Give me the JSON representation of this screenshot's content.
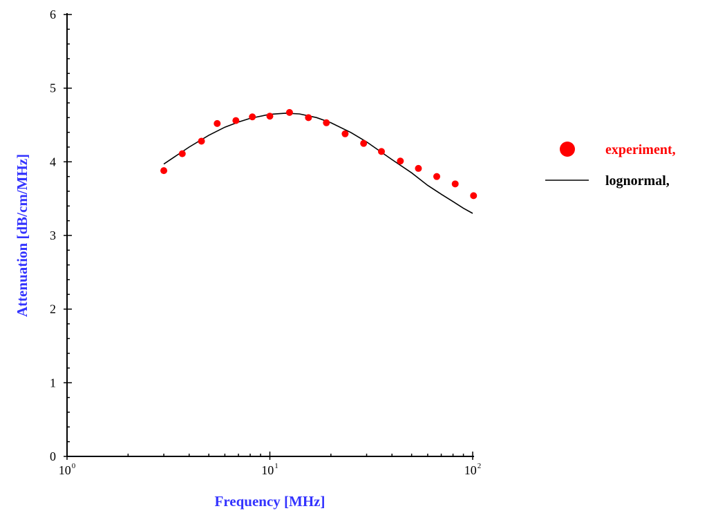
{
  "chart_data": {
    "type": "scatter",
    "title": "",
    "xlabel": "Frequency [MHz]",
    "ylabel": "Attenuation [dB/cm/MHz]",
    "xscale": "log",
    "xlim": [
      1,
      100
    ],
    "ylim": [
      0,
      6
    ],
    "x_ticks": [
      {
        "value": 1,
        "base": "10",
        "exp": "0"
      },
      {
        "value": 10,
        "base": "10",
        "exp": "1"
      },
      {
        "value": 100,
        "base": "10",
        "exp": "2"
      }
    ],
    "y_ticks": [
      "0",
      "1",
      "2",
      "3",
      "4",
      "5",
      "6"
    ],
    "grid": false,
    "legend_position": "right",
    "series": [
      {
        "name": "experiment,",
        "kind": "scatter",
        "color": "#ff0000",
        "points": [
          {
            "x": 3.0,
            "y": 3.88
          },
          {
            "x": 3.7,
            "y": 4.11
          },
          {
            "x": 4.6,
            "y": 4.28
          },
          {
            "x": 5.5,
            "y": 4.52
          },
          {
            "x": 6.8,
            "y": 4.56
          },
          {
            "x": 8.2,
            "y": 4.61
          },
          {
            "x": 10.0,
            "y": 4.62
          },
          {
            "x": 12.5,
            "y": 4.67
          },
          {
            "x": 15.5,
            "y": 4.6
          },
          {
            "x": 19.0,
            "y": 4.53
          },
          {
            "x": 23.5,
            "y": 4.38
          },
          {
            "x": 29.0,
            "y": 4.25
          },
          {
            "x": 35.5,
            "y": 4.14
          },
          {
            "x": 44.0,
            "y": 4.01
          },
          {
            "x": 54.0,
            "y": 3.91
          },
          {
            "x": 66.5,
            "y": 3.8
          },
          {
            "x": 82.0,
            "y": 3.7
          },
          {
            "x": 101.0,
            "y": 3.54
          }
        ]
      },
      {
        "name": "lognormal,",
        "kind": "line",
        "color": "#000000",
        "points": [
          {
            "x": 3.0,
            "y": 3.97
          },
          {
            "x": 4.0,
            "y": 4.2
          },
          {
            "x": 5.0,
            "y": 4.36
          },
          {
            "x": 6.0,
            "y": 4.47
          },
          {
            "x": 7.0,
            "y": 4.54
          },
          {
            "x": 8.0,
            "y": 4.59
          },
          {
            "x": 10.0,
            "y": 4.645
          },
          {
            "x": 12.0,
            "y": 4.66
          },
          {
            "x": 14.0,
            "y": 4.65
          },
          {
            "x": 17.0,
            "y": 4.6
          },
          {
            "x": 20.0,
            "y": 4.53
          },
          {
            "x": 25.0,
            "y": 4.4
          },
          {
            "x": 30.0,
            "y": 4.27
          },
          {
            "x": 40.0,
            "y": 4.03
          },
          {
            "x": 50.0,
            "y": 3.85
          },
          {
            "x": 60.0,
            "y": 3.68
          },
          {
            "x": 70.0,
            "y": 3.56
          },
          {
            "x": 80.0,
            "y": 3.46
          },
          {
            "x": 90.0,
            "y": 3.37
          },
          {
            "x": 100.0,
            "y": 3.3
          }
        ]
      }
    ]
  },
  "colors": {
    "axis": "#000000",
    "axis_title": "#3333ff",
    "experiment": "#ff0000",
    "lognormal": "#000000"
  }
}
